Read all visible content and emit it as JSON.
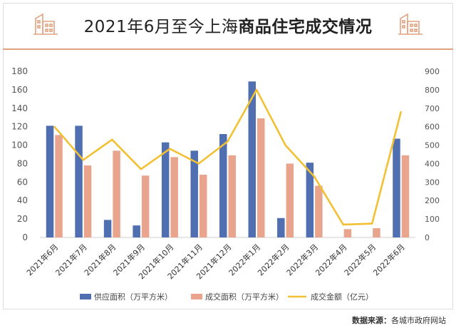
{
  "header": {
    "title_normal": "2021年6月至今上海",
    "title_bold": "商品住宅成交情况"
  },
  "icons": {
    "left": "building-icon",
    "right": "building-icon"
  },
  "colors": {
    "supply": "#4f6fb0",
    "deal_area": "#e8a48c",
    "deal_amount": "#f2c033",
    "accent": "#e2a27f"
  },
  "source": {
    "label": "数据来源：",
    "text": "各城市政府网站"
  },
  "chart_data": {
    "type": "bar",
    "categories": [
      "2021年6月",
      "2021年7月",
      "2021年8月",
      "2021年9月",
      "2021年10月",
      "2021年11月",
      "2021年12月",
      "2022年1月",
      "2022年2月",
      "2022年3月",
      "2022年4月",
      "2022年5月",
      "2022年6月"
    ],
    "series": [
      {
        "name": "供应面积（万平方米）",
        "type": "bar",
        "axis": "left",
        "values": [
          121,
          121,
          19,
          13,
          103,
          94,
          112,
          169,
          21,
          81,
          0,
          0,
          107
        ]
      },
      {
        "name": "成交面积（万平方米）",
        "type": "bar",
        "axis": "left",
        "values": [
          111,
          78,
          94,
          67,
          87,
          68,
          89,
          129,
          80,
          56,
          9,
          10,
          89
        ]
      },
      {
        "name": "成交金额（亿元）",
        "type": "line",
        "axis": "right",
        "values": [
          600,
          420,
          530,
          370,
          480,
          400,
          520,
          800,
          500,
          330,
          70,
          75,
          680
        ]
      }
    ],
    "y_left": {
      "ylim": [
        0,
        180
      ],
      "ticks": [
        0,
        20,
        40,
        60,
        80,
        100,
        120,
        140,
        160,
        180
      ]
    },
    "y_right": {
      "ylim": [
        0,
        900
      ],
      "ticks": [
        0,
        100,
        200,
        300,
        400,
        500,
        600,
        700,
        800,
        900
      ]
    },
    "grid": false,
    "legend_position": "bottom"
  }
}
